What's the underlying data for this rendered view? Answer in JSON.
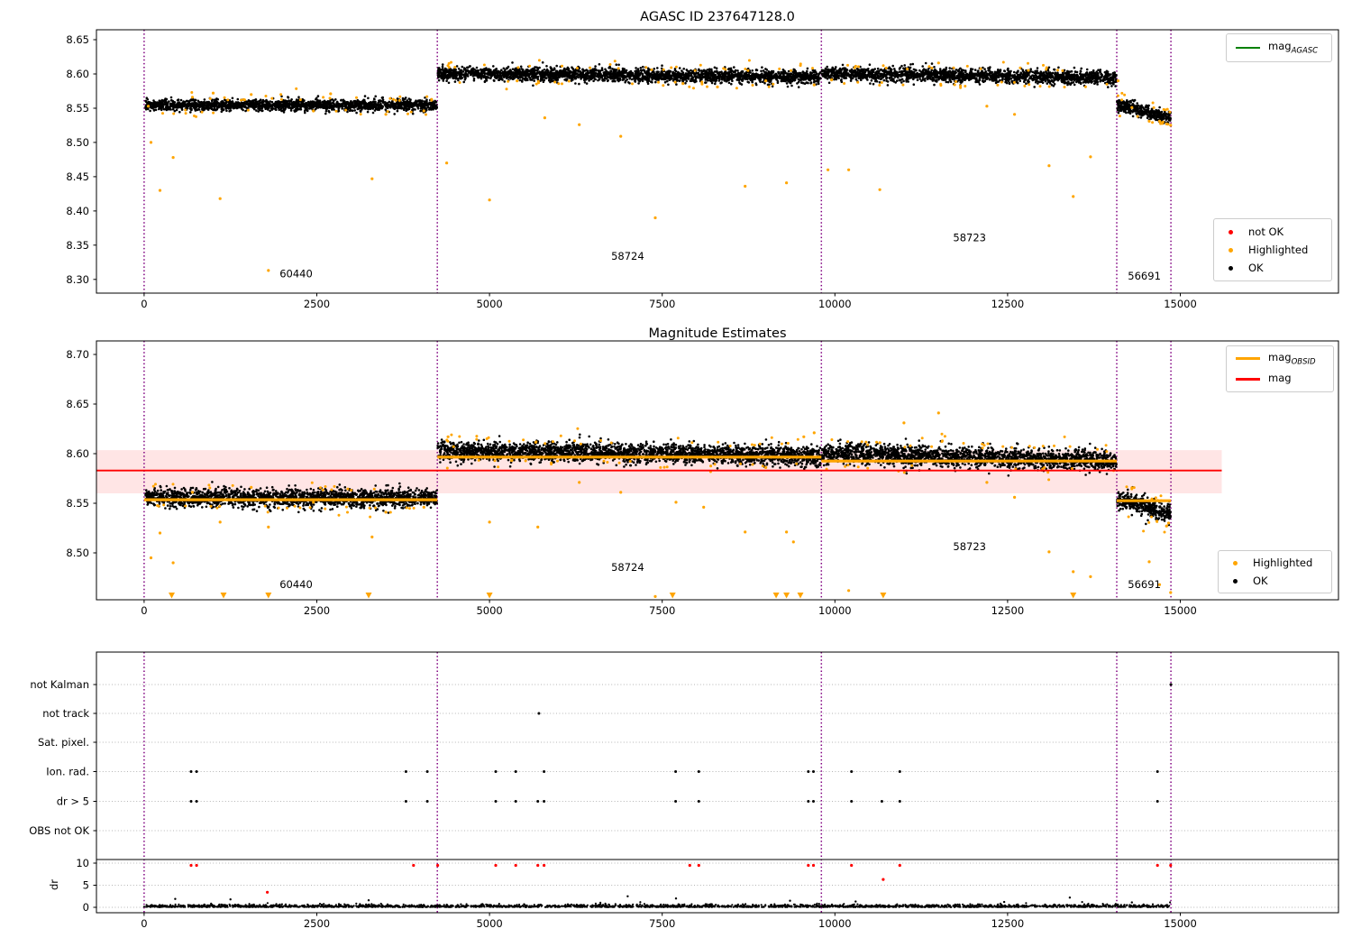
{
  "figure_title": "AGASC ID 237647128.0",
  "plots": {
    "top": {
      "title": "AGASC ID 237647128.0"
    },
    "middle": {
      "title": "Magnitude Estimates"
    }
  },
  "colors": {
    "ok": "#000000",
    "highlighted": "#ffa500",
    "not_ok": "#ff0000",
    "mag_agasc_line": "#008000",
    "mag_obsid_line": "#ffa500",
    "mag_line": "#ff0000",
    "mag_band_fill": "rgba(255,0,0,0.10)",
    "obs_boundary": "#800080",
    "grid": "#b5b5b5"
  },
  "legends": {
    "mag_agasc": {
      "label": "mag",
      "sub": "AGASC",
      "color": "#008000"
    },
    "top_markers": [
      {
        "label": "not OK",
        "color": "#ff0000"
      },
      {
        "label": "Highlighted",
        "color": "#ffa500"
      },
      {
        "label": "OK",
        "color": "#000000"
      }
    ],
    "mid_lines": [
      {
        "label": "mag",
        "sub": "OBSID",
        "color": "#ffa500"
      },
      {
        "label": "mag",
        "sub": "",
        "color": "#ff0000"
      }
    ],
    "mid_markers": [
      {
        "label": "Highlighted",
        "color": "#ffa500"
      },
      {
        "label": "OK",
        "color": "#000000"
      }
    ]
  },
  "chart_data": [
    {
      "type": "scatter",
      "title": "AGASC ID 237647128.0",
      "xlim": [
        -690,
        17290
      ],
      "ylim": [
        8.28,
        8.6645
      ],
      "xticks": [
        0,
        2500,
        5000,
        7500,
        10000,
        12500,
        15000
      ],
      "yticks": [
        "8.65",
        "8.60",
        "8.55",
        "8.50",
        "8.45",
        "8.40",
        "8.35",
        "8.30"
      ],
      "ytick_vals": [
        8.65,
        8.6,
        8.55,
        8.5,
        8.45,
        8.4,
        8.35,
        8.3
      ],
      "obs_boundaries": [
        0,
        4245,
        9805,
        14080,
        14865
      ],
      "annotations": [
        {
          "text": "60440",
          "x": 2200,
          "y": 8.303
        },
        {
          "text": "58724",
          "x": 7000,
          "y": 8.329
        },
        {
          "text": "58723",
          "x": 11950,
          "y": 8.356
        },
        {
          "text": "56691",
          "x": 14480,
          "y": 8.3
        }
      ],
      "bands": [
        {
          "obsid": "60440",
          "x0": 20,
          "x1": 4240,
          "n": 1900,
          "y0": 8.5545,
          "y1": 8.5545,
          "sd": 0.004
        },
        {
          "obsid": "58724",
          "x0": 4250,
          "x1": 9800,
          "n": 2500,
          "y0": 8.601,
          "y1": 8.595,
          "sd": 0.0048
        },
        {
          "obsid": "58723",
          "x0": 9810,
          "x1": 14075,
          "n": 1900,
          "y0": 8.601,
          "y1": 8.594,
          "sd": 0.0048
        },
        {
          "obsid": "56691",
          "x0": 14085,
          "x1": 14860,
          "n": 380,
          "y0": 8.555,
          "y1": 8.535,
          "sd": 0.0045
        }
      ],
      "n_band_highlights": [
        40,
        55,
        45,
        18
      ],
      "highlighted_outliers": [
        [
          60,
          8.553
        ],
        [
          100,
          8.5
        ],
        [
          230,
          8.43
        ],
        [
          420,
          8.478
        ],
        [
          700,
          8.566
        ],
        [
          1000,
          8.572
        ],
        [
          1100,
          8.418
        ],
        [
          1550,
          8.57
        ],
        [
          1800,
          8.313
        ],
        [
          2450,
          8.546
        ],
        [
          2700,
          8.571
        ],
        [
          3300,
          8.447
        ],
        [
          3500,
          8.541
        ],
        [
          4050,
          8.546
        ],
        [
          4380,
          8.47
        ],
        [
          5000,
          8.416
        ],
        [
          5400,
          8.59
        ],
        [
          5800,
          8.536
        ],
        [
          6300,
          8.526
        ],
        [
          6900,
          8.509
        ],
        [
          7400,
          8.39
        ],
        [
          7800,
          8.586
        ],
        [
          8300,
          8.581
        ],
        [
          8700,
          8.436
        ],
        [
          9000,
          8.59
        ],
        [
          9300,
          8.441
        ],
        [
          9700,
          8.584
        ],
        [
          9900,
          8.46
        ],
        [
          10200,
          8.46
        ],
        [
          10650,
          8.431
        ],
        [
          11500,
          8.616
        ],
        [
          12200,
          8.553
        ],
        [
          12600,
          8.541
        ],
        [
          13100,
          8.466
        ],
        [
          13450,
          8.421
        ],
        [
          13700,
          8.479
        ],
        [
          14100,
          8.59
        ],
        [
          14300,
          8.551
        ],
        [
          14550,
          8.531
        ],
        [
          14700,
          8.531
        ],
        [
          14800,
          8.527
        ],
        [
          14860,
          8.525
        ]
      ]
    },
    {
      "type": "scatter",
      "title": "Magnitude Estimates",
      "xlim": [
        -690,
        17290
      ],
      "ylim": [
        8.4527,
        8.7136
      ],
      "xticks": [
        0,
        2500,
        5000,
        7500,
        10000,
        12500,
        15000
      ],
      "yticks": [
        "8.70",
        "8.65",
        "8.60",
        "8.55",
        "8.50"
      ],
      "ytick_vals": [
        8.7,
        8.65,
        8.6,
        8.55,
        8.5
      ],
      "obs_boundaries": [
        0,
        4245,
        9805,
        14080,
        14865
      ],
      "mag_line": 8.583,
      "mag_band": [
        8.56,
        8.6035
      ],
      "mag_line_xend": 15600,
      "mag_obsid": [
        {
          "obsid": "60440",
          "x0": 0,
          "x1": 4245,
          "mag": 8.5535
        },
        {
          "obsid": "58724",
          "x0": 4245,
          "x1": 9805,
          "mag": 8.5965
        },
        {
          "obsid": "58723",
          "x0": 9805,
          "x1": 14080,
          "mag": 8.5925
        },
        {
          "obsid": "56691",
          "x0": 14080,
          "x1": 14865,
          "mag": 8.5525
        }
      ],
      "annotations": [
        {
          "text": "60440",
          "x": 2200,
          "y": 8.4645
        },
        {
          "text": "58724",
          "x": 7000,
          "y": 8.4818
        },
        {
          "text": "58723",
          "x": 11950,
          "y": 8.5027
        },
        {
          "text": "56691",
          "x": 14480,
          "y": 8.4645
        }
      ],
      "bands": [
        {
          "obsid": "60440",
          "x0": 20,
          "x1": 4240,
          "n": 1900,
          "y0": 8.556,
          "y1": 8.555,
          "sd": 0.0045
        },
        {
          "obsid": "58724",
          "x0": 4250,
          "x1": 9800,
          "n": 2500,
          "y0": 8.603,
          "y1": 8.598,
          "sd": 0.0048
        },
        {
          "obsid": "58723",
          "x0": 9810,
          "x1": 14075,
          "n": 1900,
          "y0": 8.6,
          "y1": 8.593,
          "sd": 0.005
        },
        {
          "obsid": "56691",
          "x0": 14085,
          "x1": 14860,
          "n": 380,
          "y0": 8.554,
          "y1": 8.54,
          "sd": 0.005
        }
      ],
      "n_band_highlights": [
        40,
        55,
        45,
        18
      ],
      "highlighted_outliers": [
        [
          100,
          8.495
        ],
        [
          230,
          8.52
        ],
        [
          420,
          8.49
        ],
        [
          700,
          8.561
        ],
        [
          1100,
          8.531
        ],
        [
          1550,
          8.566
        ],
        [
          1800,
          8.526
        ],
        [
          2450,
          8.551
        ],
        [
          3300,
          8.516
        ],
        [
          3500,
          8.541
        ],
        [
          4050,
          8.546
        ],
        [
          4400,
          8.617
        ],
        [
          4480,
          8.607
        ],
        [
          5000,
          8.531
        ],
        [
          5700,
          8.526
        ],
        [
          6300,
          8.571
        ],
        [
          6900,
          8.561
        ],
        [
          7400,
          8.456
        ],
        [
          7700,
          8.551
        ],
        [
          8100,
          8.546
        ],
        [
          8700,
          8.521
        ],
        [
          9000,
          8.586
        ],
        [
          9300,
          8.521
        ],
        [
          9400,
          8.511
        ],
        [
          9550,
          8.617
        ],
        [
          9700,
          8.621
        ],
        [
          10200,
          8.462
        ],
        [
          10650,
          8.611
        ],
        [
          11000,
          8.631
        ],
        [
          11500,
          8.641
        ],
        [
          12200,
          8.571
        ],
        [
          12600,
          8.556
        ],
        [
          13100,
          8.501
        ],
        [
          13450,
          8.481
        ],
        [
          13700,
          8.476
        ],
        [
          14550,
          8.491
        ],
        [
          14700,
          8.468
        ],
        [
          14800,
          8.527
        ],
        [
          14830,
          8.53
        ],
        [
          14860,
          8.46
        ]
      ],
      "clipped_low_x": [
        400,
        1150,
        1800,
        3250,
        5000,
        7650,
        9150,
        9300,
        9500,
        10700,
        13450
      ]
    },
    {
      "type": "flags",
      "rows": [
        "not Kalman",
        "not track",
        "Sat. pixel.",
        "Ion. rad.",
        "dr > 5",
        "OBS not OK"
      ],
      "dr_ticks": [
        "10",
        "5",
        "0"
      ],
      "dr_tick_vals": [
        10,
        5,
        0
      ],
      "dr_label": "dr",
      "xlim": [
        -690,
        17290
      ],
      "xticks": [
        0,
        2500,
        5000,
        7500,
        10000,
        12500,
        15000
      ],
      "obs_boundaries": [
        0,
        4245,
        9805,
        14080,
        14865
      ],
      "hline_dr": 10,
      "events": {
        "not_kalman": [
          14865
        ],
        "not_track": [
          5715
        ],
        "sat_pixel": [],
        "ion_rad": [
          680,
          760,
          3790,
          4100,
          5090,
          5380,
          5790,
          7695,
          8030,
          9615,
          9690,
          10240,
          10940,
          14670
        ],
        "dr_gt_5": [
          680,
          760,
          3790,
          4100,
          5090,
          5380,
          5700,
          5790,
          7695,
          8030,
          9615,
          9690,
          10240,
          10680,
          10940,
          14670
        ],
        "obs_not_ok": []
      },
      "dr_red_clipped": [
        680,
        760,
        3900,
        4250,
        5090,
        5380,
        5700,
        5790,
        7900,
        8030,
        9615,
        9690,
        10240,
        10940,
        14670,
        14860
      ],
      "dr_red_points": [
        [
          1784,
          3.4
        ],
        [
          10700,
          6.3
        ]
      ],
      "dr_black_extra": [
        [
          7000,
          2.5
        ],
        [
          7700,
          2.0
        ],
        [
          13400,
          2.2
        ],
        [
          9350,
          1.5
        ],
        [
          450,
          1.9
        ],
        [
          1250,
          1.8
        ],
        [
          3250,
          1.6
        ],
        [
          10300,
          1.3
        ],
        [
          12450,
          1.2
        ],
        [
          14300,
          1.1
        ]
      ],
      "baseline": {
        "x0": 0,
        "x1": 14860,
        "n": 2400,
        "dr_typical": 0.3
      }
    }
  ]
}
